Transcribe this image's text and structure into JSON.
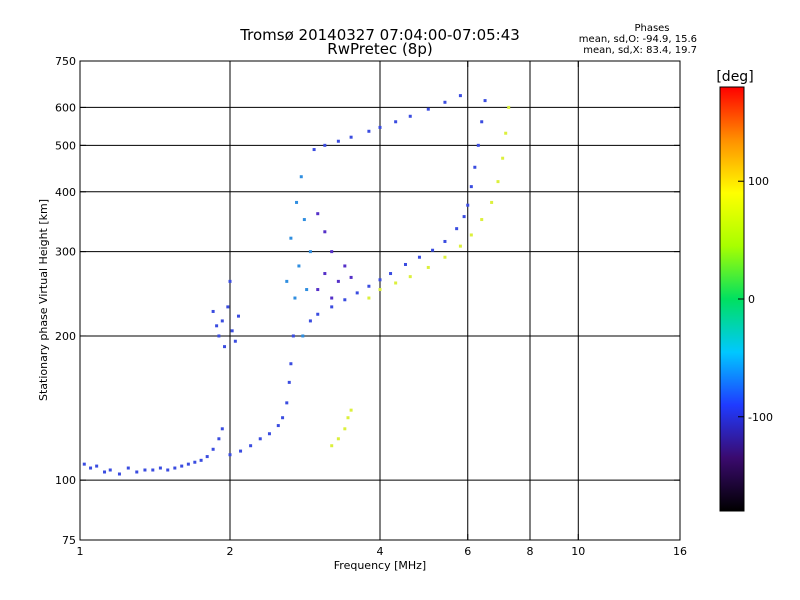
{
  "chart_data": {
    "type": "scatter",
    "title": "Tromsø 20140327 07:04:00-07:05:43",
    "subtitle": "RwPretec (8p)",
    "xlabel": "Frequency [MHz]",
    "ylabel": "Stationary phase Virtual Height [km]",
    "x_scale": "log",
    "y_scale": "log",
    "xlim": [
      1,
      16
    ],
    "ylim": [
      75,
      750
    ],
    "x_ticks": [
      {
        "value": 1,
        "label": "1"
      },
      {
        "value": 2,
        "label": "2"
      },
      {
        "value": 4,
        "label": "4"
      },
      {
        "value": 6,
        "label": "6"
      },
      {
        "value": 8,
        "label": "8"
      },
      {
        "value": 10,
        "label": "10"
      },
      {
        "value": 16,
        "label": "16"
      }
    ],
    "x_gridlines": [
      2,
      4,
      6,
      8,
      10
    ],
    "y_ticks": [
      {
        "value": 75,
        "label": "75"
      },
      {
        "value": 100,
        "label": "100"
      },
      {
        "value": 200,
        "label": "200"
      },
      {
        "value": 300,
        "label": "300"
      },
      {
        "value": 400,
        "label": "400"
      },
      {
        "value": 500,
        "label": "500"
      },
      {
        "value": 600,
        "label": "600"
      },
      {
        "value": 750,
        "label": "750"
      }
    ],
    "y_gridlines": [
      100,
      200,
      300,
      400,
      500,
      600
    ],
    "grid": true,
    "legend": {
      "title": "Phases",
      "lines": [
        "mean, sd,O: -94.9, 15.6",
        "mean, sd,X: 83.4, 19.7"
      ],
      "position": "top-right"
    },
    "colorbar": {
      "label": "[deg]",
      "range": [
        -180,
        180
      ],
      "ticks": [
        {
          "value": 100,
          "label": "100"
        },
        {
          "value": 0,
          "label": "0"
        },
        {
          "value": -100,
          "label": "-100"
        }
      ],
      "colors": [
        "#000000",
        "#3a0a6e",
        "#1f3bff",
        "#00c8ff",
        "#00e060",
        "#a8ff00",
        "#ffff00",
        "#ff9000",
        "#ff0000"
      ]
    },
    "series": [
      {
        "color": "#3a4ce0",
        "phase": -95,
        "points": [
          [
            1.02,
            108
          ],
          [
            1.05,
            106
          ],
          [
            1.08,
            107
          ],
          [
            1.12,
            104
          ],
          [
            1.15,
            105
          ],
          [
            1.2,
            103
          ],
          [
            1.25,
            106
          ],
          [
            1.3,
            104
          ],
          [
            1.35,
            105
          ],
          [
            1.4,
            105
          ],
          [
            1.45,
            106
          ],
          [
            1.5,
            105
          ],
          [
            1.55,
            106
          ],
          [
            1.6,
            107
          ],
          [
            1.65,
            108
          ],
          [
            1.7,
            109
          ],
          [
            1.75,
            110
          ],
          [
            1.8,
            112
          ],
          [
            1.85,
            116
          ],
          [
            1.9,
            122
          ],
          [
            1.93,
            128
          ]
        ]
      },
      {
        "color": "#3a4ce0",
        "phase": -95,
        "points": [
          [
            1.85,
            225
          ],
          [
            1.88,
            210
          ],
          [
            1.9,
            200
          ],
          [
            1.93,
            215
          ],
          [
            1.95,
            190
          ],
          [
            1.98,
            230
          ],
          [
            2.0,
            260
          ],
          [
            2.02,
            205
          ],
          [
            2.05,
            195
          ],
          [
            2.08,
            220
          ]
        ]
      },
      {
        "color": "#3a4ce0",
        "phase": -95,
        "points": [
          [
            2.0,
            113
          ],
          [
            2.1,
            115
          ],
          [
            2.2,
            118
          ],
          [
            2.3,
            122
          ],
          [
            2.4,
            125
          ],
          [
            2.5,
            130
          ],
          [
            2.55,
            135
          ],
          [
            2.6,
            145
          ],
          [
            2.63,
            160
          ],
          [
            2.65,
            175
          ],
          [
            2.68,
            200
          ]
        ]
      },
      {
        "color": "#2f8ee0",
        "phase": -75,
        "points": [
          [
            2.6,
            260
          ],
          [
            2.65,
            320
          ],
          [
            2.7,
            240
          ],
          [
            2.72,
            380
          ],
          [
            2.75,
            280
          ],
          [
            2.78,
            430
          ],
          [
            2.8,
            200
          ],
          [
            2.82,
            350
          ],
          [
            2.85,
            250
          ],
          [
            2.9,
            300
          ]
        ]
      },
      {
        "color": "#3a4ce0",
        "phase": -95,
        "points": [
          [
            2.9,
            215
          ],
          [
            3.0,
            222
          ],
          [
            3.2,
            230
          ],
          [
            3.4,
            238
          ],
          [
            3.6,
            246
          ],
          [
            3.8,
            254
          ],
          [
            4.0,
            262
          ],
          [
            4.2,
            270
          ],
          [
            4.5,
            282
          ],
          [
            4.8,
            292
          ],
          [
            5.1,
            302
          ],
          [
            5.4,
            315
          ],
          [
            5.7,
            335
          ],
          [
            5.9,
            355
          ],
          [
            6.0,
            375
          ]
        ]
      },
      {
        "color": "#3a4ce0",
        "phase": -95,
        "points": [
          [
            6.1,
            410
          ],
          [
            6.2,
            450
          ],
          [
            6.3,
            500
          ],
          [
            6.4,
            560
          ],
          [
            6.5,
            620
          ]
        ]
      },
      {
        "color": "#3a4ce0",
        "phase": -95,
        "points": [
          [
            2.95,
            490
          ],
          [
            3.1,
            500
          ],
          [
            3.3,
            510
          ],
          [
            3.5,
            520
          ],
          [
            3.8,
            535
          ],
          [
            4.0,
            545
          ],
          [
            4.3,
            560
          ],
          [
            4.6,
            575
          ],
          [
            5.0,
            595
          ],
          [
            5.4,
            615
          ],
          [
            5.8,
            635
          ]
        ]
      },
      {
        "color": "#5530c8",
        "phase": -110,
        "points": [
          [
            3.0,
            250
          ],
          [
            3.1,
            270
          ],
          [
            3.2,
            300
          ],
          [
            3.3,
            260
          ],
          [
            3.4,
            280
          ],
          [
            3.1,
            330
          ],
          [
            3.2,
            240
          ],
          [
            3.5,
            265
          ],
          [
            3.0,
            360
          ]
        ]
      },
      {
        "color": "#dcf03c",
        "phase": 85,
        "points": [
          [
            3.8,
            240
          ],
          [
            4.0,
            250
          ],
          [
            4.3,
            258
          ],
          [
            4.6,
            266
          ],
          [
            5.0,
            278
          ],
          [
            5.4,
            292
          ],
          [
            5.8,
            308
          ],
          [
            6.1,
            325
          ],
          [
            6.4,
            350
          ],
          [
            6.7,
            380
          ],
          [
            6.9,
            420
          ],
          [
            7.05,
            470
          ],
          [
            7.15,
            530
          ],
          [
            7.25,
            600
          ]
        ]
      },
      {
        "color": "#dcf03c",
        "phase": 85,
        "points": [
          [
            3.2,
            118
          ],
          [
            3.3,
            122
          ],
          [
            3.4,
            128
          ],
          [
            3.45,
            135
          ],
          [
            3.5,
            140
          ]
        ]
      }
    ]
  }
}
